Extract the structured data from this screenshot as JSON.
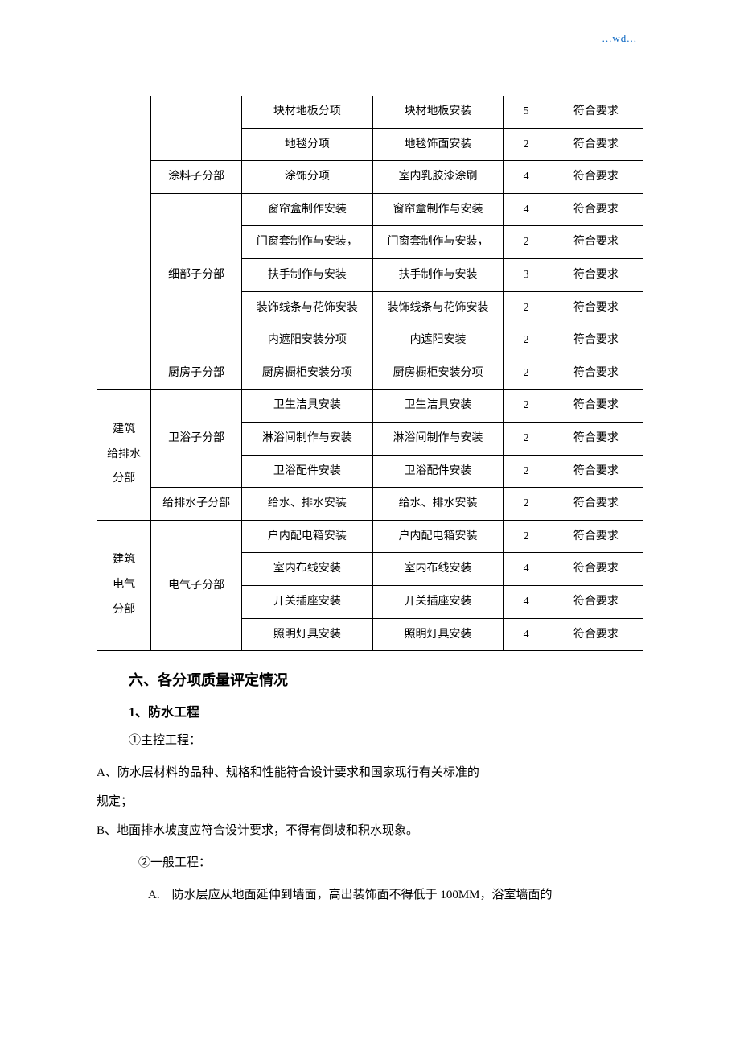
{
  "header": {
    "watermark": "...wd..."
  },
  "table": {
    "rows": [
      {
        "col0": null,
        "col1": null,
        "col2": "块材地板分项",
        "col3": "块材地板安装",
        "col4": "5",
        "col5": "符合要求"
      },
      {
        "col0": null,
        "col1": null,
        "col2": "地毯分项",
        "col3": "地毯饰面安装",
        "col4": "2",
        "col5": "符合要求"
      },
      {
        "col0": null,
        "col1": "涂料子分部",
        "col2": "涂饰分项",
        "col3": "室内乳胶漆涂刷",
        "col4": "4",
        "col5": "符合要求"
      },
      {
        "col0": null,
        "col1": null,
        "col2": "窗帘盒制作安装",
        "col3": "窗帘盒制作与安装",
        "col4": "4",
        "col5": "符合要求"
      },
      {
        "col0": null,
        "col1": null,
        "col2": "门窗套制作与安装，",
        "col3": "门窗套制作与安装，",
        "col4": "2",
        "col5": "符合要求"
      },
      {
        "col0": null,
        "col1": "细部子分部",
        "col2": "扶手制作与安装",
        "col3": "扶手制作与安装",
        "col4": "3",
        "col5": "符合要求"
      },
      {
        "col0": null,
        "col1": null,
        "col2": "装饰线条与花饰安装",
        "col3": "装饰线条与花饰安装",
        "col4": "2",
        "col5": "符合要求"
      },
      {
        "col0": null,
        "col1": null,
        "col2": "内遮阳安装分项",
        "col3": "内遮阳安装",
        "col4": "2",
        "col5": "符合要求"
      },
      {
        "col0": null,
        "col1": "厨房子分部",
        "col2": "厨房橱柜安装分项",
        "col3": "厨房橱柜安装分项",
        "col4": "2",
        "col5": "符合要求"
      },
      {
        "col0": "建筑给排水分部",
        "col1": null,
        "col2": "卫生洁具安装",
        "col3": "卫生洁具安装",
        "col4": "2",
        "col5": "符合要求"
      },
      {
        "col0": null,
        "col1": "卫浴子分部",
        "col2": "淋浴间制作与安装",
        "col3": "淋浴间制作与安装",
        "col4": "2",
        "col5": "符合要求"
      },
      {
        "col0": null,
        "col1": null,
        "col2": "卫浴配件安装",
        "col3": "卫浴配件安装",
        "col4": "2",
        "col5": "符合要求"
      },
      {
        "col0": null,
        "col1": "给排水子分部",
        "col2": "给水、排水安装",
        "col3": "给水、排水安装",
        "col4": "2",
        "col5": "符合要求"
      },
      {
        "col0": "建筑电气分部",
        "col1": "电气子分部",
        "col2": "户内配电箱安装",
        "col3": "户内配电箱安装",
        "col4": "2",
        "col5": "符合要求"
      },
      {
        "col0": null,
        "col1": null,
        "col2": "室内布线安装",
        "col3": "室内布线安装",
        "col4": "4",
        "col5": "符合要求"
      },
      {
        "col0": null,
        "col1": null,
        "col2": "开关插座安装",
        "col3": "开关插座安装",
        "col4": "4",
        "col5": "符合要求"
      },
      {
        "col0": null,
        "col1": null,
        "col2": "照明灯具安装",
        "col3": "照明灯具安装",
        "col4": "4",
        "col5": "符合要求"
      }
    ],
    "col0_spans": [
      {
        "text_lines": [
          "建筑",
          "给排水",
          "分部"
        ],
        "start": 9,
        "span": 4
      },
      {
        "text_lines": [
          "建筑",
          "电气",
          "分部"
        ],
        "start": 13,
        "span": 4
      }
    ],
    "col1_spans": [
      {
        "text": "涂料子分部",
        "start": 2,
        "span": 1
      },
      {
        "text": "细部子分部",
        "start": 3,
        "span": 5
      },
      {
        "text": "厨房子分部",
        "start": 8,
        "span": 1
      },
      {
        "text": "卫浴子分部",
        "start": 9,
        "span": 3
      },
      {
        "text": "给排水子分部",
        "start": 12,
        "span": 1
      },
      {
        "text": "电气子分部",
        "start": 13,
        "span": 4
      }
    ],
    "first_block_span": 9
  },
  "content": {
    "section_title": "六、各分项质量评定情况",
    "item1_title": "1、防水工程",
    "item1_sub1": "①主控工程：",
    "item1_a": "A、防水层材料的品种、规格和性能符合设计要求和国家现行有关标准的",
    "item1_a_cont": "规定；",
    "item1_b": "B、地面排水坡度应符合设计要求，不得有倒坡和积水现象。",
    "item1_sub2": "②一般工程：",
    "item1_a2": "A.　防水层应从地面延伸到墙面，高出装饰面不得低于 100MM，浴室墙面的"
  }
}
